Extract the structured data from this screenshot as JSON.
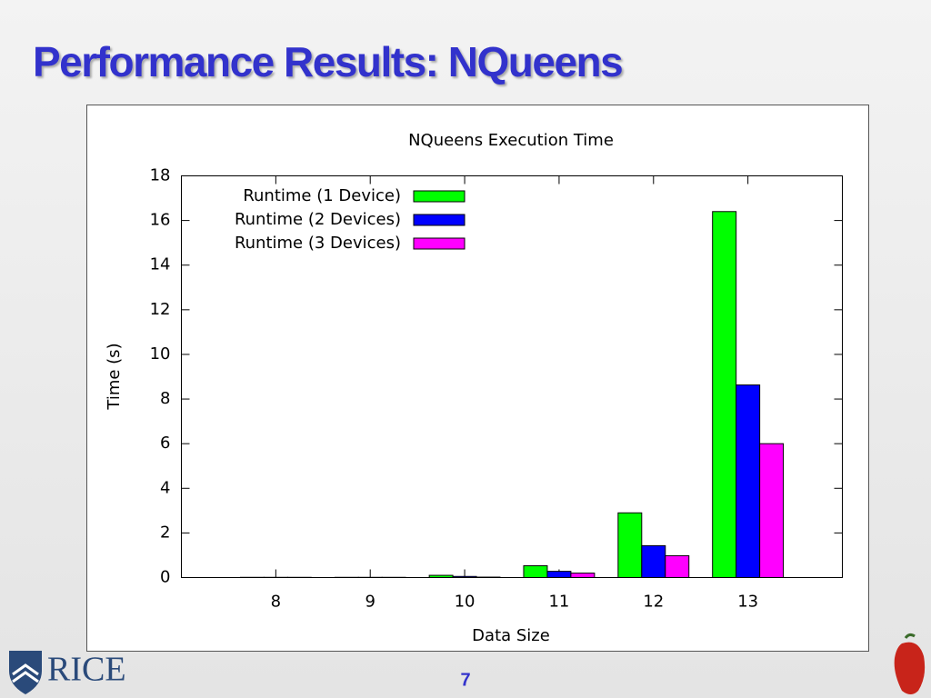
{
  "slide": {
    "title": "Performance Results: NQueens",
    "page_number": "7",
    "logo_text": "RICE"
  },
  "chart_data": {
    "type": "bar",
    "title": "NQueens Execution Time",
    "x_label": "Data Size",
    "y_label": "Time (s)",
    "x": [
      8,
      9,
      10,
      11,
      12,
      13
    ],
    "series": [
      {
        "name": "Runtime (1 Device)",
        "color": "#00ff00",
        "values": [
          0.01,
          0.01,
          0.1,
          0.53,
          2.9,
          16.4
        ]
      },
      {
        "name": "Runtime (2 Devices)",
        "color": "#0000ff",
        "values": [
          0.01,
          0.01,
          0.05,
          0.28,
          1.43,
          8.63
        ]
      },
      {
        "name": "Runtime (3 Devices)",
        "color": "#ff00ff",
        "values": [
          0.01,
          0.01,
          0.02,
          0.2,
          0.98,
          6.0
        ]
      }
    ],
    "xlim": [
      7,
      14
    ],
    "xticks": [
      8,
      9,
      10,
      11,
      12,
      13
    ],
    "ylim": [
      0,
      18
    ],
    "yticks": [
      0,
      2,
      4,
      6,
      8,
      10,
      12,
      14,
      16,
      18
    ],
    "legend": "top-left",
    "grid": false
  }
}
